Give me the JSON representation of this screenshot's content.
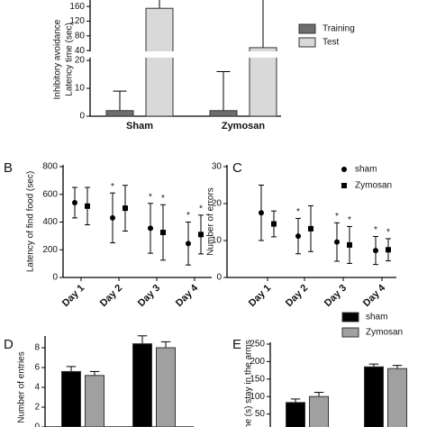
{
  "chart_data": [
    {
      "type": "bar",
      "categories": [
        "Sham",
        "Zymosan"
      ],
      "ylabel": [
        "Inhibitory avoidance",
        "Latency time (sec)"
      ],
      "series": [
        {
          "name": "Training",
          "color": "#6e6e6e",
          "values": [
            2,
            2
          ],
          "errors": [
            7,
            14
          ]
        },
        {
          "name": "Test",
          "color": "#d9d9d9",
          "values": [
            155,
            48
          ],
          "errors": [
            60,
            150
          ]
        }
      ],
      "ylim": [
        0,
        180
      ],
      "ybreak": [
        21,
        38
      ],
      "yticks": [
        0,
        10,
        20,
        40,
        80,
        120,
        160
      ],
      "legend": "right"
    },
    {
      "type": "point",
      "label": "B",
      "ylabel": "Latency of find food (sec)",
      "categories": [
        "Day 1",
        "Day 2",
        "Day 3",
        "Day 4"
      ],
      "series": [
        {
          "marker": "circle",
          "color": "#000000",
          "values": [
            540,
            430,
            355,
            245
          ],
          "errors": [
            110,
            180,
            180,
            155
          ],
          "starred": [
            false,
            true,
            true,
            true
          ]
        },
        {
          "marker": "square",
          "color": "#000000",
          "values": [
            515,
            500,
            325,
            310
          ],
          "errors": [
            135,
            165,
            200,
            140
          ],
          "starred": [
            false,
            false,
            true,
            true
          ]
        }
      ],
      "star": "*",
      "ylim": [
        0,
        800
      ],
      "yticks": [
        0,
        200,
        400,
        600,
        800
      ]
    },
    {
      "type": "point",
      "label": "C",
      "ylabel": "Number of errors",
      "categories": [
        "Day 1",
        "Day 2",
        "Day 3",
        "Day 4"
      ],
      "series": [
        {
          "name": "sham",
          "marker": "circle",
          "color": "#000000",
          "values": [
            17.5,
            11.2,
            9.6,
            7.3
          ],
          "errors": [
            7.5,
            4.8,
            5.2,
            3.8
          ],
          "starred": [
            false,
            true,
            true,
            true
          ]
        },
        {
          "name": "Zymosan",
          "marker": "square",
          "color": "#000000",
          "values": [
            14.5,
            13.2,
            8.8,
            7.5
          ],
          "errors": [
            3.5,
            6.2,
            5,
            3
          ],
          "starred": [
            false,
            false,
            true,
            true
          ]
        }
      ],
      "star": "*",
      "ylim": [
        0,
        30
      ],
      "yticks": [
        0,
        10,
        20,
        30
      ],
      "legend": "upper right"
    },
    {
      "type": "bar",
      "label": "D",
      "ylabel": "Number of entries",
      "categories": [
        null,
        null
      ],
      "series": [
        {
          "color": "#000000",
          "values": [
            5.6,
            8.4
          ],
          "errors": [
            0.5,
            0.8
          ]
        },
        {
          "color": "#a0a0a0",
          "values": [
            5.2,
            8.0
          ],
          "errors": [
            0.4,
            0.6
          ]
        }
      ],
      "ylim": [
        0,
        9
      ],
      "yticks": [
        0,
        2,
        4,
        6,
        8
      ]
    },
    {
      "type": "bar",
      "label": "E",
      "ylabel": "Time (s) stay in the arms",
      "categories": [
        null,
        null
      ],
      "series": [
        {
          "name": "sham",
          "color": "#000000",
          "values": [
            83,
            185
          ],
          "errors": [
            10,
            8
          ]
        },
        {
          "name": "Zymosan",
          "color": "#a0a0a0",
          "values": [
            100,
            180
          ],
          "errors": [
            12,
            9
          ]
        }
      ],
      "ylim": [
        0,
        250
      ],
      "yticks": [
        50,
        100,
        150,
        200,
        250
      ],
      "legend": "upper right"
    }
  ]
}
